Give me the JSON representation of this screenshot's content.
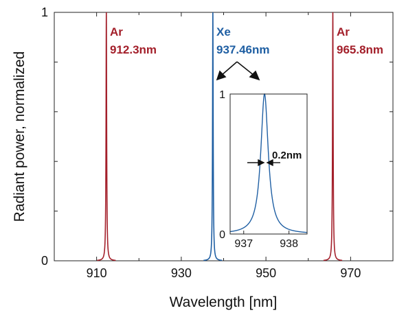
{
  "chart_data": {
    "type": "line",
    "xlabel": "Wavelength [nm]",
    "ylabel": "Radiant power, normalized",
    "xlim": [
      900,
      980
    ],
    "ylim": [
      0,
      1
    ],
    "x_ticks": [
      910,
      930,
      950,
      970
    ],
    "y_ticks": [
      0,
      1
    ],
    "grid": false,
    "colors": {
      "ar": "#a31f2a",
      "xe": "#1f5fa3",
      "axis": "#222222"
    },
    "peaks": [
      {
        "element": "Ar",
        "wavelength_label": "912.3nm",
        "center": 912.3,
        "height": 1
      },
      {
        "element": "Xe",
        "wavelength_label": "937.46nm",
        "center": 937.46,
        "height": 1
      },
      {
        "element": "Ar",
        "wavelength_label": "965.8nm",
        "center": 965.8,
        "height": 1
      }
    ],
    "inset": {
      "xlim": [
        936.7,
        938.4
      ],
      "ylim": [
        0,
        1
      ],
      "x_ticks": [
        937,
        938
      ],
      "y_ticks": [
        0,
        1
      ],
      "peak_center": 937.46,
      "fwhm_label": "0.2nm",
      "fwhm": 0.2
    }
  }
}
